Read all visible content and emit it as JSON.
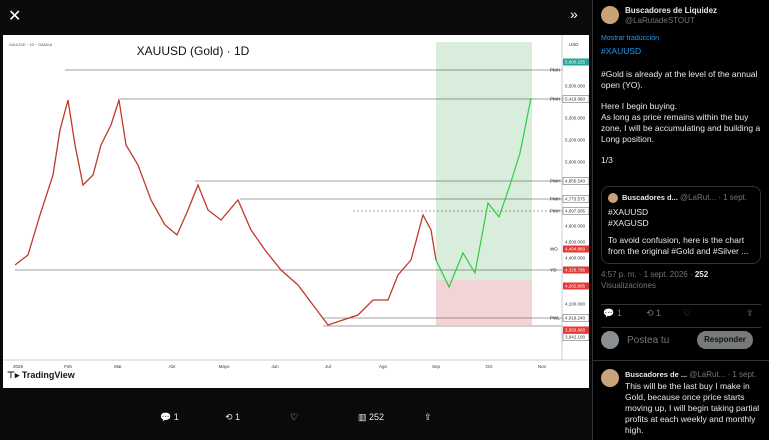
{
  "viewer": {
    "chart": {
      "title": "XAUUSD (Gold) · 1D",
      "symbol_line": "XAUUSD · 1D · OANDA",
      "currency": "USD",
      "brand": "TradingView",
      "price_labels": [
        "5,600.225",
        "5,500.000",
        "5,419.860",
        "5,300.000",
        "5,200.000",
        "5,000.000",
        "4,855.540",
        "4,773.575",
        "4,697.505",
        "4,600.000",
        "4,500.000",
        "4,404.890",
        "4,400.000",
        "4,328.785",
        "4,262.805",
        "4,100.000",
        "4,019.240",
        "3,959.800",
        "3,942.100"
      ],
      "time_labels": [
        "2026",
        "Feb",
        "Mar",
        "Abr",
        "Mayo",
        "Jun",
        "Jul",
        "Ago",
        "Sep",
        "Oct",
        "Nov"
      ],
      "level_labels": [
        "PMH",
        "PMH",
        "PWH",
        "PWH",
        "PWH",
        "WO",
        "YO",
        "PWL"
      ]
    },
    "bottom_bar": {
      "replies": "1",
      "reposts": "1",
      "views": "252"
    }
  },
  "post": {
    "author": "Buscadores de Liquidez",
    "handle": "@LaRutadeSTOUT",
    "translate": "Mostrar traducción",
    "hashtag": "#XAUUSD",
    "paragraphs": [
      "#Gold is already at the level of the annual open (YO).",
      "Here I begin buying.\nAs long as price remains within the buy zone, I will be accumulating and building a Long position.",
      "1/3"
    ],
    "quote": {
      "author": "Buscadores d...",
      "handle": "@LaRut...",
      "date": "· 1 sept.",
      "lines": [
        "#XAUUSD",
        "#XAGUSD",
        "To avoid confusion, here is the chart from the original #Gold and #Silver ..."
      ]
    },
    "meta": "4:57 p. m. · 1 sept. 2026 ·",
    "views": "252",
    "views_label": "Visualizaciones",
    "actions": {
      "replies": "1",
      "reposts": "1"
    },
    "reply_box": {
      "placeholder": "Postea tu",
      "button": "Responder"
    },
    "reply": {
      "author": "Buscadores de ...",
      "handle": "@LaRut...",
      "date": "· 1 sept.",
      "text": "This will be the last buy I make in Gold, because once price starts moving up, I will begin taking partial profits at each weekly and monthly high."
    }
  }
}
